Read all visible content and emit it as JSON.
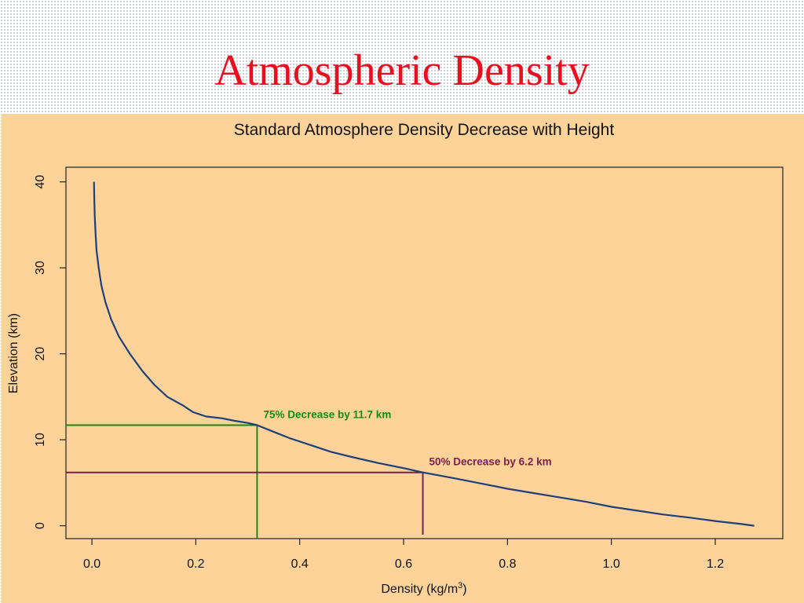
{
  "slide": {
    "title": "Atmospheric Density"
  },
  "chart_data": {
    "type": "line",
    "title": "Standard Atmosphere Density Decrease with Height",
    "xlabel": "Density (kg/m",
    "xlabel_sup": "3",
    "xlabel_suffix": ")",
    "ylabel": "Elevation (km)",
    "xlim": [
      -0.05,
      1.33
    ],
    "ylim": [
      -1.5,
      41.7
    ],
    "xticks": [
      0.0,
      0.2,
      0.4,
      0.6,
      0.8,
      1.0,
      1.2
    ],
    "xtick_labels": [
      "0.0",
      "0.2",
      "0.4",
      "0.6",
      "0.8",
      "1.0",
      "1.2"
    ],
    "yticks": [
      0,
      10,
      20,
      30,
      40
    ],
    "ytick_labels": [
      "0",
      "10",
      "20",
      "30",
      "40"
    ],
    "grid": false,
    "series": [
      {
        "color": "#1f3f7a",
        "points": [
          [
            0.0039,
            40
          ],
          [
            0.0045,
            38
          ],
          [
            0.0055,
            36
          ],
          [
            0.007,
            34
          ],
          [
            0.009,
            32
          ],
          [
            0.013,
            30
          ],
          [
            0.018,
            28
          ],
          [
            0.026,
            26
          ],
          [
            0.037,
            24
          ],
          [
            0.052,
            22
          ],
          [
            0.073,
            20
          ],
          [
            0.097,
            18
          ],
          [
            0.12,
            16.4
          ],
          [
            0.145,
            15
          ],
          [
            0.175,
            14
          ],
          [
            0.195,
            13.2
          ],
          [
            0.22,
            12.7
          ],
          [
            0.25,
            12.5
          ],
          [
            0.275,
            12.2
          ],
          [
            0.3,
            11.95
          ],
          [
            0.318,
            11.7
          ],
          [
            0.355,
            10.8
          ],
          [
            0.38,
            10.2
          ],
          [
            0.415,
            9.5
          ],
          [
            0.46,
            8.6
          ],
          [
            0.5,
            8.0
          ],
          [
            0.55,
            7.3
          ],
          [
            0.6,
            6.7
          ],
          [
            0.637,
            6.2
          ],
          [
            0.7,
            5.5
          ],
          [
            0.75,
            4.9
          ],
          [
            0.8,
            4.3
          ],
          [
            0.85,
            3.8
          ],
          [
            0.9,
            3.3
          ],
          [
            0.95,
            2.8
          ],
          [
            1.0,
            2.2
          ],
          [
            1.05,
            1.75
          ],
          [
            1.1,
            1.3
          ],
          [
            1.15,
            0.95
          ],
          [
            1.2,
            0.55
          ],
          [
            1.25,
            0.2
          ],
          [
            1.275,
            0
          ]
        ]
      }
    ],
    "annotations": [
      {
        "text": "75% Decrease by 11.7 km",
        "x": 0.318,
        "y": 11.7,
        "color": "#158a15"
      },
      {
        "text": "50% Decrease by 6.2 km",
        "x": 0.637,
        "y": 6.2,
        "color": "#7a1f4f"
      }
    ]
  }
}
